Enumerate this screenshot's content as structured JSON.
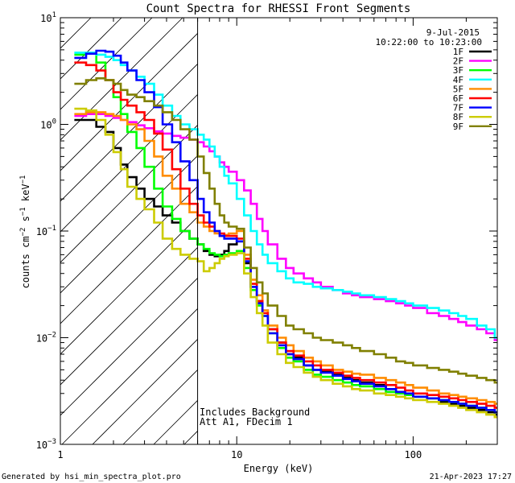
{
  "chart_data": {
    "type": "line",
    "step": true,
    "title": "Count Spectra for RHESSI Front Segments",
    "xlabel": "Energy (keV)",
    "ylabel": {
      "base": "counts cm",
      "sup1": "−2",
      "mid1": " s",
      "sup2": "−1",
      "mid2": " keV",
      "sup3": "−1"
    },
    "xscale": "log",
    "yscale": "log",
    "xlim": [
      1,
      300
    ],
    "ylim": [
      0.001,
      10
    ],
    "x_ticks": [
      {
        "value": 1,
        "label": "1"
      },
      {
        "value": 10,
        "label": "10"
      },
      {
        "value": 100,
        "label": "100"
      }
    ],
    "y_ticks": [
      {
        "value": 0.001,
        "mant": "10",
        "exp": "−3"
      },
      {
        "value": 0.01,
        "mant": "10",
        "exp": "−2"
      },
      {
        "value": 0.1,
        "mant": "10",
        "exp": "−1"
      },
      {
        "value": 1,
        "mant": "10",
        "exp": "0"
      },
      {
        "value": 10,
        "mant": "10",
        "exp": "1"
      }
    ],
    "hatched_region": {
      "x_from": 1,
      "x_to": 6,
      "meaning": "excluded low-energy region"
    },
    "marker_line_x": 6,
    "legend": {
      "date": "9-Jul-2015",
      "time_range": "10:22:00 to 10:23:00",
      "placement": "top-right"
    },
    "annotations": [
      "Includes Background",
      "Att A1, FDecim 1"
    ],
    "series": [
      {
        "name": "1F",
        "color": "#000000",
        "x": [
          1.2,
          1.4,
          1.6,
          1.8,
          2.0,
          2.2,
          2.4,
          2.7,
          3.0,
          3.4,
          3.8,
          4.3,
          4.8,
          5.4,
          6,
          6.5,
          7,
          7.5,
          8,
          8.5,
          9,
          10,
          11,
          12,
          13,
          14,
          15,
          17,
          19,
          21,
          24,
          27,
          30,
          35,
          40,
          45,
          50,
          60,
          70,
          80,
          90,
          100,
          120,
          140,
          160,
          180,
          200,
          230,
          260,
          290
        ],
        "values": [
          1.1,
          1.1,
          0.95,
          0.85,
          0.6,
          0.42,
          0.32,
          0.25,
          0.2,
          0.17,
          0.14,
          0.12,
          0.1,
          0.085,
          0.075,
          0.065,
          0.06,
          0.058,
          0.06,
          0.065,
          0.075,
          0.08,
          0.05,
          0.03,
          0.022,
          0.018,
          0.012,
          0.009,
          0.007,
          0.0065,
          0.0055,
          0.005,
          0.0048,
          0.0045,
          0.0042,
          0.004,
          0.0038,
          0.0036,
          0.0033,
          0.0031,
          0.003,
          0.0028,
          0.0027,
          0.0025,
          0.0024,
          0.0023,
          0.0022,
          0.0021,
          0.002,
          0.0019
        ]
      },
      {
        "name": "2F",
        "color": "#ff00ff",
        "x": [
          1.2,
          1.4,
          1.6,
          1.8,
          2.0,
          2.2,
          2.4,
          2.7,
          3.0,
          3.4,
          3.8,
          4.3,
          4.8,
          5.4,
          6,
          6.5,
          7,
          7.5,
          8,
          8.5,
          9,
          10,
          11,
          12,
          13,
          14,
          15,
          17,
          19,
          21,
          24,
          27,
          30,
          35,
          40,
          45,
          50,
          60,
          70,
          80,
          90,
          100,
          120,
          140,
          160,
          180,
          200,
          230,
          260,
          290
        ],
        "values": [
          1.2,
          1.25,
          1.25,
          1.2,
          1.15,
          1.1,
          1.05,
          0.98,
          0.92,
          0.86,
          0.82,
          0.78,
          0.75,
          0.72,
          0.68,
          0.62,
          0.56,
          0.5,
          0.44,
          0.4,
          0.36,
          0.3,
          0.24,
          0.18,
          0.13,
          0.1,
          0.075,
          0.055,
          0.045,
          0.04,
          0.036,
          0.033,
          0.03,
          0.028,
          0.026,
          0.025,
          0.024,
          0.023,
          0.022,
          0.021,
          0.02,
          0.019,
          0.017,
          0.016,
          0.015,
          0.014,
          0.013,
          0.012,
          0.011,
          0.0095
        ]
      },
      {
        "name": "3F",
        "color": "#00ff00",
        "x": [
          1.2,
          1.4,
          1.6,
          1.8,
          2.0,
          2.2,
          2.4,
          2.7,
          3.0,
          3.4,
          3.8,
          4.3,
          4.8,
          5.4,
          6,
          6.5,
          7,
          7.5,
          8,
          8.5,
          9,
          10,
          11,
          12,
          13,
          14,
          15,
          17,
          19,
          21,
          24,
          27,
          30,
          35,
          40,
          45,
          50,
          60,
          70,
          80,
          90,
          100,
          120,
          140,
          160,
          180,
          200,
          230,
          260,
          290
        ],
        "values": [
          4.5,
          4.6,
          3.8,
          2.6,
          1.8,
          1.25,
          0.85,
          0.6,
          0.4,
          0.25,
          0.17,
          0.13,
          0.1,
          0.085,
          0.075,
          0.068,
          0.062,
          0.06,
          0.058,
          0.06,
          0.062,
          0.065,
          0.045,
          0.028,
          0.02,
          0.016,
          0.011,
          0.008,
          0.0065,
          0.006,
          0.005,
          0.0045,
          0.0043,
          0.004,
          0.0038,
          0.0036,
          0.0035,
          0.0033,
          0.0031,
          0.003,
          0.0029,
          0.0028,
          0.0027,
          0.0026,
          0.0025,
          0.0024,
          0.0023,
          0.0022,
          0.0021,
          0.002
        ]
      },
      {
        "name": "4F",
        "color": "#00ffff",
        "x": [
          1.2,
          1.4,
          1.6,
          1.8,
          2.0,
          2.2,
          2.4,
          2.7,
          3.0,
          3.4,
          3.8,
          4.3,
          4.8,
          5.4,
          6,
          6.5,
          7,
          7.5,
          8,
          8.5,
          9,
          10,
          11,
          12,
          13,
          14,
          15,
          17,
          19,
          21,
          24,
          27,
          30,
          35,
          40,
          45,
          50,
          60,
          70,
          80,
          90,
          100,
          120,
          140,
          160,
          180,
          200,
          230,
          260,
          290
        ],
        "values": [
          4.7,
          4.7,
          4.5,
          4.3,
          4.0,
          3.6,
          3.2,
          2.8,
          2.4,
          1.9,
          1.5,
          1.2,
          1.0,
          0.9,
          0.8,
          0.72,
          0.62,
          0.5,
          0.4,
          0.33,
          0.28,
          0.2,
          0.14,
          0.1,
          0.075,
          0.06,
          0.05,
          0.042,
          0.036,
          0.033,
          0.032,
          0.03,
          0.029,
          0.028,
          0.027,
          0.026,
          0.025,
          0.024,
          0.023,
          0.022,
          0.021,
          0.02,
          0.019,
          0.018,
          0.017,
          0.016,
          0.015,
          0.013,
          0.012,
          0.01
        ]
      },
      {
        "name": "5F",
        "color": "#ff8c00",
        "x": [
          1.2,
          1.4,
          1.6,
          1.8,
          2.0,
          2.2,
          2.4,
          2.7,
          3.0,
          3.4,
          3.8,
          4.3,
          4.8,
          5.4,
          6,
          6.5,
          7,
          7.5,
          8,
          8.5,
          9,
          10,
          11,
          12,
          13,
          14,
          15,
          17,
          19,
          21,
          24,
          27,
          30,
          35,
          40,
          45,
          50,
          60,
          70,
          80,
          90,
          100,
          120,
          140,
          160,
          180,
          200,
          230,
          260,
          290
        ],
        "values": [
          1.25,
          1.3,
          1.3,
          1.25,
          1.2,
          1.1,
          1.0,
          0.9,
          0.7,
          0.5,
          0.33,
          0.25,
          0.18,
          0.15,
          0.12,
          0.11,
          0.1,
          0.095,
          0.09,
          0.092,
          0.095,
          0.1,
          0.06,
          0.035,
          0.025,
          0.018,
          0.013,
          0.01,
          0.0085,
          0.0075,
          0.0065,
          0.006,
          0.0055,
          0.005,
          0.0048,
          0.0046,
          0.0045,
          0.0042,
          0.004,
          0.0038,
          0.0036,
          0.0034,
          0.0032,
          0.003,
          0.0029,
          0.0028,
          0.0027,
          0.0026,
          0.0025,
          0.0024
        ]
      },
      {
        "name": "6F",
        "color": "#ff0000",
        "x": [
          1.2,
          1.4,
          1.6,
          1.8,
          2.0,
          2.2,
          2.4,
          2.7,
          3.0,
          3.4,
          3.8,
          4.3,
          4.8,
          5.4,
          6,
          6.5,
          7,
          7.5,
          8,
          8.5,
          9,
          10,
          11,
          12,
          13,
          14,
          15,
          17,
          19,
          21,
          24,
          27,
          30,
          35,
          40,
          45,
          50,
          60,
          70,
          80,
          90,
          100,
          120,
          140,
          160,
          180,
          200,
          230,
          260,
          290
        ],
        "values": [
          3.8,
          3.6,
          3.2,
          2.6,
          2.0,
          1.7,
          1.5,
          1.3,
          1.1,
          0.82,
          0.58,
          0.38,
          0.25,
          0.18,
          0.14,
          0.12,
          0.11,
          0.1,
          0.095,
          0.09,
          0.09,
          0.085,
          0.055,
          0.032,
          0.022,
          0.017,
          0.012,
          0.009,
          0.0075,
          0.0068,
          0.006,
          0.0055,
          0.005,
          0.0047,
          0.0044,
          0.0042,
          0.004,
          0.0038,
          0.0036,
          0.0034,
          0.0032,
          0.003,
          0.0029,
          0.0028,
          0.0027,
          0.0026,
          0.0025,
          0.0024,
          0.0023,
          0.0022
        ]
      },
      {
        "name": "7F",
        "color": "#0000ff",
        "x": [
          1.2,
          1.4,
          1.6,
          1.8,
          2.0,
          2.2,
          2.4,
          2.7,
          3.0,
          3.4,
          3.8,
          4.3,
          4.8,
          5.4,
          6,
          6.5,
          7,
          7.5,
          8,
          8.5,
          9,
          10,
          11,
          12,
          13,
          14,
          15,
          17,
          19,
          21,
          24,
          27,
          30,
          35,
          40,
          45,
          50,
          60,
          70,
          80,
          90,
          100,
          120,
          140,
          160,
          180,
          200,
          230,
          260,
          290
        ],
        "values": [
          4.2,
          4.6,
          4.9,
          4.8,
          4.4,
          3.8,
          3.2,
          2.6,
          2.0,
          1.45,
          1.0,
          0.68,
          0.45,
          0.3,
          0.2,
          0.15,
          0.12,
          0.1,
          0.09,
          0.085,
          0.085,
          0.08,
          0.052,
          0.03,
          0.021,
          0.016,
          0.011,
          0.0085,
          0.007,
          0.0063,
          0.0055,
          0.005,
          0.0047,
          0.0044,
          0.0041,
          0.0039,
          0.0037,
          0.0035,
          0.0033,
          0.0031,
          0.003,
          0.0028,
          0.0027,
          0.0026,
          0.0025,
          0.0024,
          0.0023,
          0.0022,
          0.0021,
          0.002
        ]
      },
      {
        "name": "8F",
        "color": "#cccc00",
        "x": [
          1.2,
          1.4,
          1.6,
          1.8,
          2.0,
          2.2,
          2.4,
          2.7,
          3.0,
          3.4,
          3.8,
          4.3,
          4.8,
          5.4,
          6,
          6.5,
          7,
          7.5,
          8,
          8.5,
          9,
          10,
          11,
          12,
          13,
          14,
          15,
          17,
          19,
          21,
          24,
          27,
          30,
          35,
          40,
          45,
          50,
          60,
          70,
          80,
          90,
          100,
          120,
          140,
          160,
          180,
          200,
          230,
          260,
          290
        ],
        "values": [
          1.4,
          1.35,
          1.1,
          0.8,
          0.55,
          0.38,
          0.26,
          0.2,
          0.16,
          0.12,
          0.085,
          0.068,
          0.06,
          0.055,
          0.052,
          0.042,
          0.045,
          0.05,
          0.055,
          0.058,
          0.06,
          0.062,
          0.04,
          0.024,
          0.017,
          0.013,
          0.009,
          0.007,
          0.0058,
          0.0053,
          0.0047,
          0.0043,
          0.004,
          0.0037,
          0.0035,
          0.0033,
          0.0032,
          0.003,
          0.0029,
          0.0028,
          0.0027,
          0.0026,
          0.0025,
          0.0024,
          0.0023,
          0.0022,
          0.0021,
          0.002,
          0.0019,
          0.0018
        ]
      },
      {
        "name": "9F",
        "color": "#808000",
        "x": [
          1.2,
          1.4,
          1.6,
          1.8,
          2.0,
          2.2,
          2.4,
          2.7,
          3.0,
          3.4,
          3.8,
          4.3,
          4.8,
          5.4,
          6,
          6.5,
          7,
          7.5,
          8,
          8.5,
          9,
          10,
          11,
          12,
          13,
          14,
          15,
          17,
          19,
          21,
          24,
          27,
          30,
          35,
          40,
          45,
          50,
          60,
          70,
          80,
          90,
          100,
          120,
          140,
          160,
          180,
          200,
          230,
          260,
          290
        ],
        "values": [
          2.4,
          2.6,
          2.7,
          2.6,
          2.4,
          2.1,
          1.9,
          1.8,
          1.65,
          1.5,
          1.3,
          1.1,
          0.9,
          0.72,
          0.5,
          0.35,
          0.25,
          0.18,
          0.14,
          0.12,
          0.11,
          0.105,
          0.07,
          0.045,
          0.033,
          0.026,
          0.02,
          0.016,
          0.013,
          0.012,
          0.011,
          0.01,
          0.0095,
          0.009,
          0.0085,
          0.008,
          0.0075,
          0.007,
          0.0065,
          0.006,
          0.0058,
          0.0055,
          0.0052,
          0.005,
          0.0048,
          0.0046,
          0.0044,
          0.0042,
          0.004,
          0.0038
        ]
      }
    ]
  },
  "footer": {
    "generated_by": "Generated by hsi_min_spectra_plot.pro",
    "timestamp": "21-Apr-2023 17:27"
  }
}
